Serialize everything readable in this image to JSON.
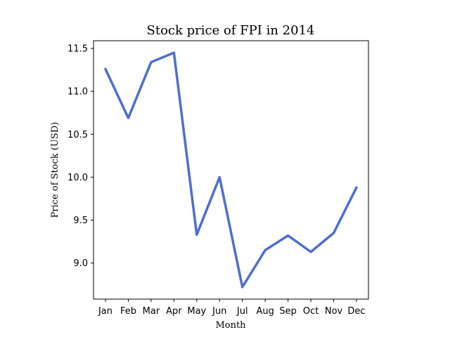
{
  "chart_data": {
    "type": "line",
    "title": "Stock price of FPI in 2014",
    "xlabel": "Month",
    "ylabel": "Price of Stock (USD)",
    "categories": [
      "Jan",
      "Feb",
      "Mar",
      "Apr",
      "May",
      "Jun",
      "Jul",
      "Aug",
      "Sep",
      "Oct",
      "Nov",
      "Dec"
    ],
    "series": [
      {
        "values": [
          11.26,
          10.69,
          11.34,
          11.45,
          9.33,
          10.0,
          8.72,
          9.15,
          9.32,
          9.13,
          9.35,
          9.88
        ],
        "color": "#4c6fcf"
      }
    ],
    "ylim": [
      8.58,
      11.59
    ],
    "yticks": [
      9.0,
      9.5,
      10.0,
      10.5,
      11.0,
      11.5
    ],
    "ytick_labels": [
      "9.0",
      "9.5",
      "10.0",
      "10.5",
      "11.0",
      "11.5"
    ],
    "grid": false,
    "legend": "none"
  }
}
